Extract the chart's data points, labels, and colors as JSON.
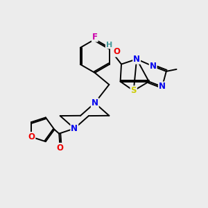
{
  "background_color": "#ececec",
  "atom_colors": {
    "C": "#000000",
    "N": "#0000ee",
    "O": "#ee0000",
    "S": "#cccc00",
    "F": "#cc00aa",
    "H": "#449999"
  },
  "bond_color": "#000000",
  "bond_lw": 1.4,
  "font_size": 8.5,
  "figsize": [
    3.0,
    3.0
  ],
  "dpi": 100
}
